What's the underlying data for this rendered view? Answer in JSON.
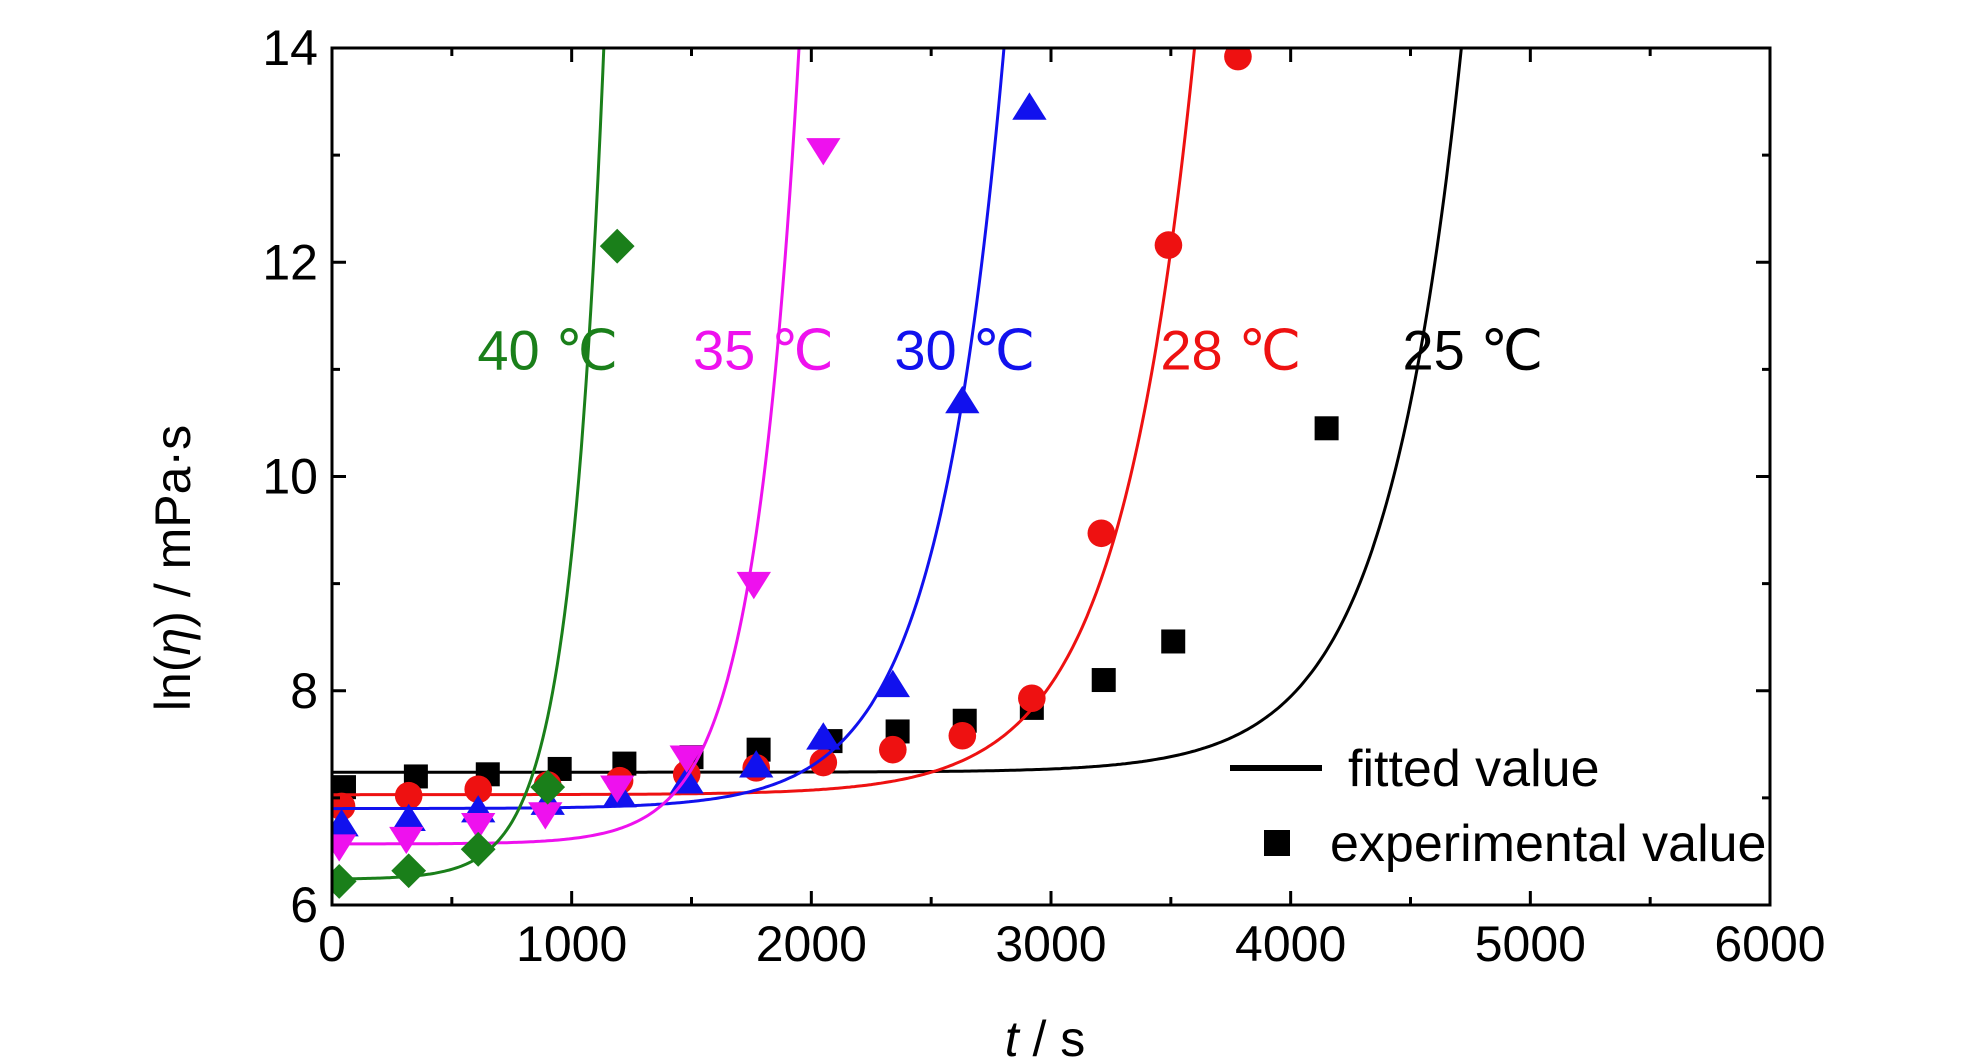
{
  "chart_data": {
    "type": "scatter",
    "xlabel_var": "t",
    "xlabel_unit": " / s",
    "ylabel_prefix": "ln(",
    "ylabel_var": "η",
    "ylabel_suffix": ") / mPa·s",
    "xlim": [
      0,
      6000
    ],
    "ylim": [
      6,
      14
    ],
    "x_ticks": [
      0,
      1000,
      2000,
      3000,
      4000,
      5000,
      6000
    ],
    "y_ticks": [
      6,
      8,
      10,
      12,
      14
    ],
    "grid": false,
    "legend": {
      "placement": "bottom-right",
      "line_label": "fitted value",
      "marker_label": "experimental value"
    },
    "series": [
      {
        "name": "25 ℃",
        "color": "#000000",
        "marker": "square",
        "points": [
          [
            50,
            7.1
          ],
          [
            350,
            7.2
          ],
          [
            650,
            7.22
          ],
          [
            950,
            7.27
          ],
          [
            1220,
            7.32
          ],
          [
            1500,
            7.38
          ],
          [
            1780,
            7.45
          ],
          [
            2080,
            7.53
          ],
          [
            2360,
            7.62
          ],
          [
            2640,
            7.72
          ],
          [
            2920,
            7.84
          ],
          [
            3220,
            8.1
          ],
          [
            3510,
            8.46
          ],
          [
            4150,
            10.45
          ]
        ],
        "fit": {
          "a": 7.24,
          "b": 2.2e-06,
          "k": 0.00317
        }
      },
      {
        "name": "28 ℃",
        "color": "#ee1111",
        "marker": "circle",
        "points": [
          [
            40,
            6.92
          ],
          [
            320,
            7.02
          ],
          [
            610,
            7.08
          ],
          [
            900,
            7.12
          ],
          [
            1200,
            7.16
          ],
          [
            1480,
            7.22
          ],
          [
            1770,
            7.28
          ],
          [
            2050,
            7.33
          ],
          [
            2340,
            7.45
          ],
          [
            2630,
            7.58
          ],
          [
            2920,
            7.93
          ],
          [
            3210,
            9.47
          ],
          [
            3490,
            12.16
          ],
          [
            3780,
            13.92
          ]
        ],
        "fit": {
          "a": 7.03,
          "b": 7.2e-05,
          "k": 0.00319
        }
      },
      {
        "name": "30 ℃",
        "color": "#1111ee",
        "marker": "triangle-up",
        "points": [
          [
            40,
            6.75
          ],
          [
            320,
            6.8
          ],
          [
            610,
            6.88
          ],
          [
            900,
            6.95
          ],
          [
            1200,
            7.02
          ],
          [
            1480,
            7.15
          ],
          [
            1770,
            7.3
          ],
          [
            2050,
            7.56
          ],
          [
            2340,
            8.05
          ],
          [
            2630,
            10.7
          ],
          [
            2910,
            13.44
          ]
        ],
        "fit": {
          "a": 6.9,
          "b": 0.000302,
          "k": 0.00359
        }
      },
      {
        "name": "35 ℃",
        "color": "#ee11ee",
        "marker": "triangle-down",
        "points": [
          [
            30,
            6.55
          ],
          [
            310,
            6.62
          ],
          [
            610,
            6.75
          ],
          [
            890,
            6.85
          ],
          [
            1190,
            7.1
          ],
          [
            1480,
            7.38
          ],
          [
            1760,
            9.0
          ],
          [
            2050,
            13.05
          ]
        ],
        "fit": {
          "a": 6.57,
          "b": 0.000253,
          "k": 0.00528
        }
      },
      {
        "name": "40 ℃",
        "color": "#1a7f1a",
        "marker": "diamond",
        "points": [
          [
            30,
            6.22
          ],
          [
            320,
            6.32
          ],
          [
            610,
            6.52
          ],
          [
            900,
            7.1
          ],
          [
            1190,
            12.15
          ]
        ],
        "fit": {
          "a": 6.24,
          "b": 0.00286,
          "k": 0.00697
        }
      }
    ],
    "annotations": [
      {
        "text": "40 ℃",
        "color": "#1a7f1a",
        "x": 900,
        "y": 11.0
      },
      {
        "text": "35 ℃",
        "color": "#ee11ee",
        "x": 1800,
        "y": 11.0
      },
      {
        "text": "30 ℃",
        "color": "#1111ee",
        "x": 2640,
        "y": 11.0
      },
      {
        "text": "28 ℃",
        "color": "#ee1111",
        "x": 3750,
        "y": 11.0
      },
      {
        "text": "25 ℃",
        "color": "#000000",
        "x": 4760,
        "y": 11.0
      }
    ]
  }
}
